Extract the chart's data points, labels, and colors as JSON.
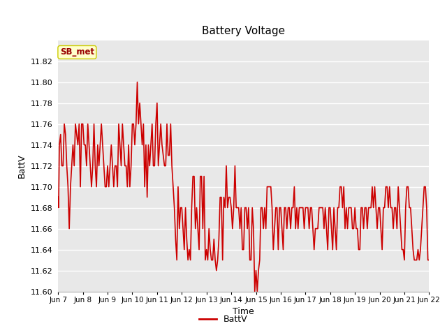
{
  "title": "Battery Voltage",
  "xlabel": "Time",
  "ylabel": "BattV",
  "legend_label": "BattV",
  "annotation": "SB_met",
  "ylim": [
    11.6,
    11.84
  ],
  "yticks": [
    11.6,
    11.62,
    11.64,
    11.66,
    11.68,
    11.7,
    11.72,
    11.74,
    11.76,
    11.78,
    11.8,
    11.82
  ],
  "line_color": "#cc0000",
  "bg_color": "#e8e8e8",
  "fig_bg_color": "#ffffff",
  "annotation_bg": "#ffffcc",
  "annotation_text_color": "#990000",
  "annotation_border_color": "#cccc00",
  "grid_color": "#ffffff",
  "x_tick_positions": [
    7,
    8,
    9,
    10,
    11,
    12,
    13,
    14,
    15,
    16,
    17,
    18,
    19,
    20,
    21,
    22
  ],
  "x_labels": [
    "Jun 7",
    "Jun 8",
    "Jun 9",
    "Jun 10",
    "Jun 11",
    "Jun 12",
    "Jun 13",
    "Jun 14",
    "Jun 15",
    "Jun 16",
    "Jun 17",
    "Jun 18",
    "Jun 19",
    "Jun 20",
    "Jun 21",
    "Jun 22"
  ],
  "data": [
    [
      7.0,
      11.69
    ],
    [
      7.02,
      11.68
    ],
    [
      7.05,
      11.74
    ],
    [
      7.1,
      11.75
    ],
    [
      7.15,
      11.72
    ],
    [
      7.2,
      11.72
    ],
    [
      7.25,
      11.76
    ],
    [
      7.3,
      11.75
    ],
    [
      7.35,
      11.72
    ],
    [
      7.4,
      11.7
    ],
    [
      7.45,
      11.66
    ],
    [
      7.5,
      11.7
    ],
    [
      7.55,
      11.72
    ],
    [
      7.6,
      11.74
    ],
    [
      7.65,
      11.72
    ],
    [
      7.7,
      11.76
    ],
    [
      7.75,
      11.75
    ],
    [
      7.8,
      11.74
    ],
    [
      7.85,
      11.76
    ],
    [
      7.9,
      11.7
    ],
    [
      7.95,
      11.76
    ],
    [
      8.0,
      11.76
    ],
    [
      8.05,
      11.74
    ],
    [
      8.1,
      11.74
    ],
    [
      8.15,
      11.72
    ],
    [
      8.2,
      11.76
    ],
    [
      8.25,
      11.74
    ],
    [
      8.3,
      11.72
    ],
    [
      8.35,
      11.7
    ],
    [
      8.4,
      11.72
    ],
    [
      8.45,
      11.76
    ],
    [
      8.5,
      11.72
    ],
    [
      8.55,
      11.7
    ],
    [
      8.6,
      11.74
    ],
    [
      8.65,
      11.72
    ],
    [
      8.7,
      11.74
    ],
    [
      8.75,
      11.76
    ],
    [
      8.8,
      11.74
    ],
    [
      8.85,
      11.72
    ],
    [
      8.9,
      11.7
    ],
    [
      8.95,
      11.7
    ],
    [
      9.0,
      11.72
    ],
    [
      9.05,
      11.7
    ],
    [
      9.1,
      11.72
    ],
    [
      9.15,
      11.74
    ],
    [
      9.2,
      11.72
    ],
    [
      9.25,
      11.7
    ],
    [
      9.3,
      11.72
    ],
    [
      9.35,
      11.72
    ],
    [
      9.4,
      11.7
    ],
    [
      9.45,
      11.76
    ],
    [
      9.5,
      11.74
    ],
    [
      9.55,
      11.72
    ],
    [
      9.6,
      11.76
    ],
    [
      9.65,
      11.74
    ],
    [
      9.7,
      11.72
    ],
    [
      9.75,
      11.72
    ],
    [
      9.8,
      11.7
    ],
    [
      9.85,
      11.74
    ],
    [
      9.9,
      11.7
    ],
    [
      9.95,
      11.72
    ],
    [
      10.0,
      11.76
    ],
    [
      10.05,
      11.76
    ],
    [
      10.1,
      11.74
    ],
    [
      10.15,
      11.76
    ],
    [
      10.2,
      11.8
    ],
    [
      10.25,
      11.76
    ],
    [
      10.3,
      11.78
    ],
    [
      10.35,
      11.76
    ],
    [
      10.4,
      11.74
    ],
    [
      10.45,
      11.76
    ],
    [
      10.5,
      11.7
    ],
    [
      10.55,
      11.74
    ],
    [
      10.6,
      11.69
    ],
    [
      10.65,
      11.74
    ],
    [
      10.7,
      11.72
    ],
    [
      10.75,
      11.74
    ],
    [
      10.8,
      11.76
    ],
    [
      10.85,
      11.72
    ],
    [
      10.9,
      11.72
    ],
    [
      10.95,
      11.76
    ],
    [
      11.0,
      11.78
    ],
    [
      11.05,
      11.72
    ],
    [
      11.1,
      11.74
    ],
    [
      11.15,
      11.76
    ],
    [
      11.2,
      11.74
    ],
    [
      11.25,
      11.73
    ],
    [
      11.3,
      11.72
    ],
    [
      11.35,
      11.72
    ],
    [
      11.4,
      11.76
    ],
    [
      11.45,
      11.73
    ],
    [
      11.5,
      11.73
    ],
    [
      11.55,
      11.76
    ],
    [
      11.6,
      11.72
    ],
    [
      11.65,
      11.7
    ],
    [
      11.7,
      11.68
    ],
    [
      11.75,
      11.65
    ],
    [
      11.8,
      11.63
    ],
    [
      11.85,
      11.7
    ],
    [
      11.9,
      11.66
    ],
    [
      11.95,
      11.68
    ],
    [
      12.0,
      11.68
    ],
    [
      12.05,
      11.66
    ],
    [
      12.1,
      11.64
    ],
    [
      12.15,
      11.68
    ],
    [
      12.2,
      11.65
    ],
    [
      12.25,
      11.63
    ],
    [
      12.3,
      11.64
    ],
    [
      12.35,
      11.63
    ],
    [
      12.4,
      11.68
    ],
    [
      12.45,
      11.71
    ],
    [
      12.5,
      11.71
    ],
    [
      12.55,
      11.66
    ],
    [
      12.6,
      11.68
    ],
    [
      12.65,
      11.66
    ],
    [
      12.7,
      11.64
    ],
    [
      12.75,
      11.71
    ],
    [
      12.8,
      11.71
    ],
    [
      12.85,
      11.66
    ],
    [
      12.9,
      11.71
    ],
    [
      12.95,
      11.63
    ],
    [
      13.0,
      11.64
    ],
    [
      13.05,
      11.63
    ],
    [
      13.1,
      11.66
    ],
    [
      13.15,
      11.64
    ],
    [
      13.2,
      11.63
    ],
    [
      13.25,
      11.63
    ],
    [
      13.3,
      11.65
    ],
    [
      13.35,
      11.63
    ],
    [
      13.4,
      11.62
    ],
    [
      13.45,
      11.63
    ],
    [
      13.5,
      11.65
    ],
    [
      13.55,
      11.69
    ],
    [
      13.6,
      11.69
    ],
    [
      13.65,
      11.63
    ],
    [
      13.7,
      11.69
    ],
    [
      13.75,
      11.68
    ],
    [
      13.8,
      11.72
    ],
    [
      13.85,
      11.68
    ],
    [
      13.9,
      11.69
    ],
    [
      13.95,
      11.69
    ],
    [
      14.0,
      11.68
    ],
    [
      14.05,
      11.66
    ],
    [
      14.1,
      11.68
    ],
    [
      14.15,
      11.72
    ],
    [
      14.2,
      11.68
    ],
    [
      14.25,
      11.68
    ],
    [
      14.3,
      11.68
    ],
    [
      14.35,
      11.66
    ],
    [
      14.4,
      11.68
    ],
    [
      14.45,
      11.64
    ],
    [
      14.5,
      11.64
    ],
    [
      14.55,
      11.68
    ],
    [
      14.6,
      11.68
    ],
    [
      14.65,
      11.66
    ],
    [
      14.7,
      11.68
    ],
    [
      14.75,
      11.63
    ],
    [
      14.8,
      11.63
    ],
    [
      14.85,
      11.68
    ],
    [
      14.9,
      11.66
    ],
    [
      14.95,
      11.6
    ],
    [
      15.0,
      11.62
    ],
    [
      15.05,
      11.6
    ],
    [
      15.1,
      11.62
    ],
    [
      15.15,
      11.63
    ],
    [
      15.2,
      11.68
    ],
    [
      15.25,
      11.68
    ],
    [
      15.3,
      11.66
    ],
    [
      15.35,
      11.68
    ],
    [
      15.4,
      11.66
    ],
    [
      15.45,
      11.7
    ],
    [
      15.5,
      11.7
    ],
    [
      15.55,
      11.7
    ],
    [
      15.6,
      11.7
    ],
    [
      15.65,
      11.68
    ],
    [
      15.7,
      11.64
    ],
    [
      15.75,
      11.66
    ],
    [
      15.8,
      11.68
    ],
    [
      15.85,
      11.68
    ],
    [
      15.9,
      11.64
    ],
    [
      15.95,
      11.68
    ],
    [
      16.0,
      11.68
    ],
    [
      16.05,
      11.66
    ],
    [
      16.1,
      11.64
    ],
    [
      16.15,
      11.68
    ],
    [
      16.2,
      11.68
    ],
    [
      16.25,
      11.66
    ],
    [
      16.3,
      11.68
    ],
    [
      16.35,
      11.68
    ],
    [
      16.4,
      11.66
    ],
    [
      16.45,
      11.68
    ],
    [
      16.5,
      11.68
    ],
    [
      16.55,
      11.7
    ],
    [
      16.6,
      11.66
    ],
    [
      16.65,
      11.68
    ],
    [
      16.7,
      11.66
    ],
    [
      16.75,
      11.68
    ],
    [
      16.8,
      11.68
    ],
    [
      16.85,
      11.68
    ],
    [
      16.9,
      11.68
    ],
    [
      16.95,
      11.66
    ],
    [
      17.0,
      11.68
    ],
    [
      17.05,
      11.68
    ],
    [
      17.1,
      11.68
    ],
    [
      17.15,
      11.66
    ],
    [
      17.2,
      11.68
    ],
    [
      17.25,
      11.68
    ],
    [
      17.3,
      11.66
    ],
    [
      17.35,
      11.64
    ],
    [
      17.4,
      11.66
    ],
    [
      17.45,
      11.66
    ],
    [
      17.5,
      11.66
    ],
    [
      17.55,
      11.68
    ],
    [
      17.6,
      11.68
    ],
    [
      17.65,
      11.68
    ],
    [
      17.7,
      11.68
    ],
    [
      17.75,
      11.66
    ],
    [
      17.8,
      11.68
    ],
    [
      17.85,
      11.66
    ],
    [
      17.9,
      11.64
    ],
    [
      17.95,
      11.68
    ],
    [
      18.0,
      11.68
    ],
    [
      18.05,
      11.66
    ],
    [
      18.1,
      11.64
    ],
    [
      18.15,
      11.68
    ],
    [
      18.2,
      11.66
    ],
    [
      18.25,
      11.64
    ],
    [
      18.3,
      11.68
    ],
    [
      18.35,
      11.68
    ],
    [
      18.4,
      11.7
    ],
    [
      18.45,
      11.7
    ],
    [
      18.5,
      11.68
    ],
    [
      18.55,
      11.7
    ],
    [
      18.6,
      11.66
    ],
    [
      18.65,
      11.68
    ],
    [
      18.7,
      11.66
    ],
    [
      18.75,
      11.68
    ],
    [
      18.8,
      11.68
    ],
    [
      18.85,
      11.68
    ],
    [
      18.9,
      11.66
    ],
    [
      18.95,
      11.66
    ],
    [
      19.0,
      11.68
    ],
    [
      19.05,
      11.66
    ],
    [
      19.1,
      11.66
    ],
    [
      19.15,
      11.64
    ],
    [
      19.2,
      11.64
    ],
    [
      19.25,
      11.68
    ],
    [
      19.3,
      11.68
    ],
    [
      19.35,
      11.66
    ],
    [
      19.4,
      11.68
    ],
    [
      19.45,
      11.68
    ],
    [
      19.5,
      11.66
    ],
    [
      19.55,
      11.68
    ],
    [
      19.6,
      11.68
    ],
    [
      19.65,
      11.68
    ],
    [
      19.7,
      11.7
    ],
    [
      19.75,
      11.68
    ],
    [
      19.8,
      11.7
    ],
    [
      19.85,
      11.68
    ],
    [
      19.9,
      11.66
    ],
    [
      19.95,
      11.68
    ],
    [
      20.0,
      11.68
    ],
    [
      20.05,
      11.66
    ],
    [
      20.1,
      11.64
    ],
    [
      20.15,
      11.68
    ],
    [
      20.2,
      11.68
    ],
    [
      20.25,
      11.7
    ],
    [
      20.3,
      11.7
    ],
    [
      20.35,
      11.68
    ],
    [
      20.4,
      11.7
    ],
    [
      20.45,
      11.68
    ],
    [
      20.5,
      11.68
    ],
    [
      20.55,
      11.66
    ],
    [
      20.6,
      11.68
    ],
    [
      20.65,
      11.68
    ],
    [
      20.7,
      11.66
    ],
    [
      20.75,
      11.7
    ],
    [
      20.8,
      11.68
    ],
    [
      20.85,
      11.66
    ],
    [
      20.9,
      11.64
    ],
    [
      20.95,
      11.64
    ],
    [
      21.0,
      11.63
    ],
    [
      21.05,
      11.68
    ],
    [
      21.1,
      11.7
    ],
    [
      21.15,
      11.7
    ],
    [
      21.2,
      11.68
    ],
    [
      21.25,
      11.68
    ],
    [
      21.3,
      11.66
    ],
    [
      21.35,
      11.64
    ],
    [
      21.4,
      11.63
    ],
    [
      21.45,
      11.63
    ],
    [
      21.5,
      11.63
    ],
    [
      21.55,
      11.64
    ],
    [
      21.6,
      11.63
    ],
    [
      21.65,
      11.64
    ],
    [
      21.7,
      11.66
    ],
    [
      21.75,
      11.68
    ],
    [
      21.8,
      11.7
    ],
    [
      21.85,
      11.7
    ],
    [
      21.9,
      11.68
    ],
    [
      21.95,
      11.63
    ],
    [
      22.0,
      11.63
    ]
  ]
}
